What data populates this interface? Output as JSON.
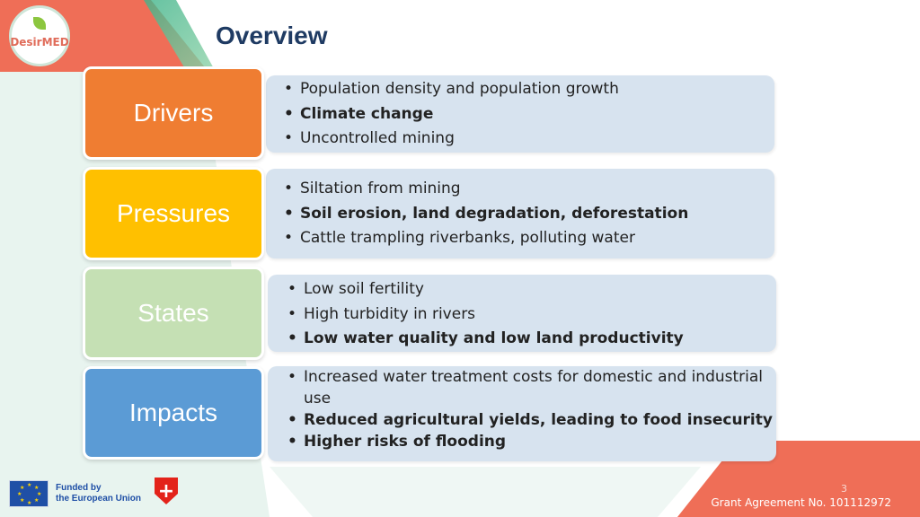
{
  "header": {
    "title": "Overview",
    "logo_text": "DesirMED"
  },
  "rows": [
    {
      "label": "Drivers",
      "color": "#ef7d32",
      "items": [
        {
          "text": "Population density and population growth",
          "bold": false
        },
        {
          "text": "Climate change",
          "bold": true
        },
        {
          "text": "Uncontrolled mining",
          "bold": false
        }
      ]
    },
    {
      "label": "Pressures",
      "color": "#ffc000",
      "items": [
        {
          "text": "Siltation from mining",
          "bold": false
        },
        {
          "text": "Soil erosion, land degradation, deforestation",
          "bold": true
        },
        {
          "text": "Cattle trampling riverbanks, polluting water",
          "bold": false
        }
      ]
    },
    {
      "label": "States",
      "color": "#c5e0b4",
      "items": [
        {
          "text": "Low soil fertility",
          "bold": false
        },
        {
          "text": "High turbidity in rivers",
          "bold": false
        },
        {
          "text": "Low water quality and low land productivity",
          "bold": true
        }
      ]
    },
    {
      "label": "Impacts",
      "color": "#5b9bd5",
      "items": [
        {
          "text": "Increased water treatment costs for domestic and industrial use",
          "bold": false
        },
        {
          "text": "Reduced agricultural yields, leading to food insecurity",
          "bold": true
        },
        {
          "text": "Higher risks of flooding",
          "bold": true
        }
      ]
    }
  ],
  "footer": {
    "eu_funding_line1": "Funded by",
    "eu_funding_line2": "the European Union",
    "grant_text": "Grant Agreement No. 101112972",
    "page_number": "3"
  }
}
